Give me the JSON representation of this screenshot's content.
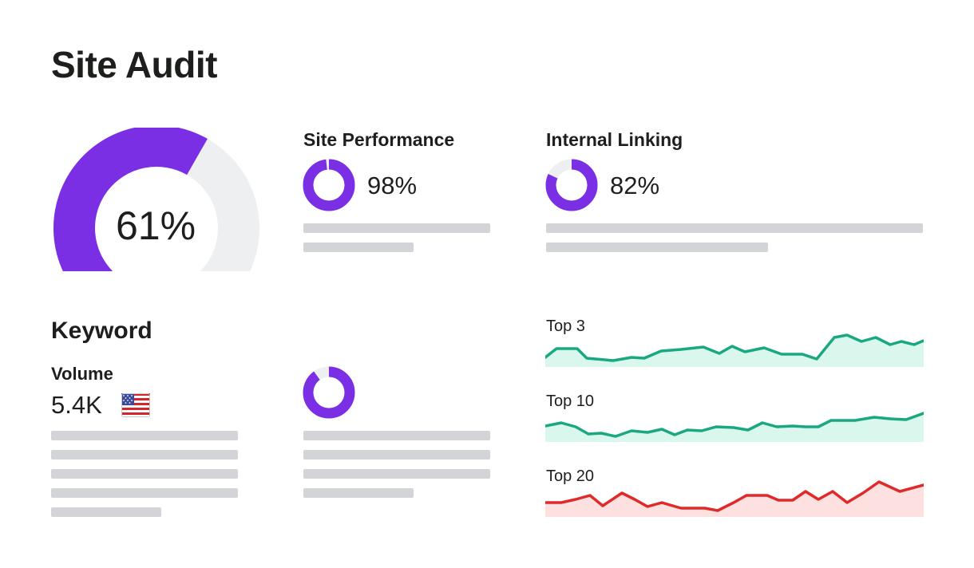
{
  "page": {
    "title": "Site Audit"
  },
  "overall": {
    "score_label": "61%",
    "fraction": 0.61,
    "color": "#7b2fe4",
    "track_color": "#eeeff1"
  },
  "site_performance": {
    "label": "Site Performance",
    "value_label": "98%",
    "fraction": 0.98
  },
  "internal_linking": {
    "label": "Internal Linking",
    "value_label": "82%",
    "fraction": 0.82
  },
  "keyword": {
    "title": "Keyword",
    "volume_label": "Volume",
    "volume_value": "5.4K",
    "country_icon": "us-flag-icon",
    "donut_fraction": 0.9
  },
  "rankings": [
    {
      "label": "Top 3",
      "color": "#19a880",
      "fill": "#d9f7ec"
    },
    {
      "label": "Top 10",
      "color": "#19a880",
      "fill": "#d9f7ec"
    },
    {
      "label": "Top 20",
      "color": "#e02a2a",
      "fill": "#fde1e0"
    }
  ],
  "colors": {
    "accent": "#7b2fe4",
    "placeholder": "#d3d4d8",
    "text": "#1d1f1c"
  }
}
